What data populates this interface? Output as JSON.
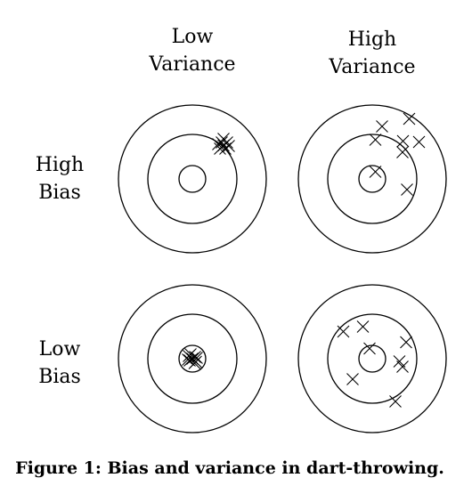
{
  "columns": [
    {
      "key": "low_variance",
      "label_lines": [
        "Low",
        "Variance"
      ]
    },
    {
      "key": "high_variance",
      "label_lines": [
        "High",
        "Variance"
      ]
    }
  ],
  "rows": [
    {
      "key": "high_bias",
      "label_lines": [
        "High",
        "Bias"
      ]
    },
    {
      "key": "low_bias",
      "label_lines": [
        "Low",
        "Bias"
      ]
    }
  ],
  "caption": "Figure 1: Bias and variance in dart-throwing.",
  "targets": [
    {
      "row": "high_bias",
      "column": "low_variance",
      "darts": [
        [
          0.7,
          -0.75
        ],
        [
          0.66,
          -0.82
        ],
        [
          0.78,
          -0.82
        ],
        [
          0.62,
          -0.68
        ],
        [
          0.74,
          -0.68
        ],
        [
          0.7,
          -0.9
        ],
        [
          0.82,
          -0.74
        ],
        [
          0.58,
          -0.78
        ]
      ]
    },
    {
      "row": "high_bias",
      "column": "high_variance",
      "darts": [
        [
          0.07,
          -0.16
        ],
        [
          0.22,
          -1.18
        ],
        [
          0.83,
          -1.35
        ],
        [
          0.69,
          -0.85
        ],
        [
          0.68,
          -0.6
        ],
        [
          1.05,
          -0.83
        ],
        [
          0.78,
          0.24
        ],
        [
          0.07,
          -0.88
        ]
      ]
    },
    {
      "row": "low_bias",
      "column": "low_variance",
      "darts": [
        [
          0.0,
          0.0
        ],
        [
          -0.06,
          0.04
        ],
        [
          0.06,
          -0.04
        ],
        [
          0.08,
          0.07
        ],
        [
          -0.08,
          -0.06
        ],
        [
          0.05,
          0.1
        ],
        [
          -0.04,
          -0.1
        ],
        [
          0.1,
          -0.02
        ],
        [
          -0.1,
          0.02
        ]
      ]
    },
    {
      "row": "low_bias",
      "column": "high_variance",
      "darts": [
        [
          -0.65,
          -0.61
        ],
        [
          -0.21,
          -0.72
        ],
        [
          -0.06,
          -0.23
        ],
        [
          0.76,
          -0.37
        ],
        [
          0.61,
          0.06
        ],
        [
          0.68,
          0.18
        ],
        [
          -0.44,
          0.46
        ],
        [
          0.52,
          0.96
        ]
      ]
    }
  ]
}
